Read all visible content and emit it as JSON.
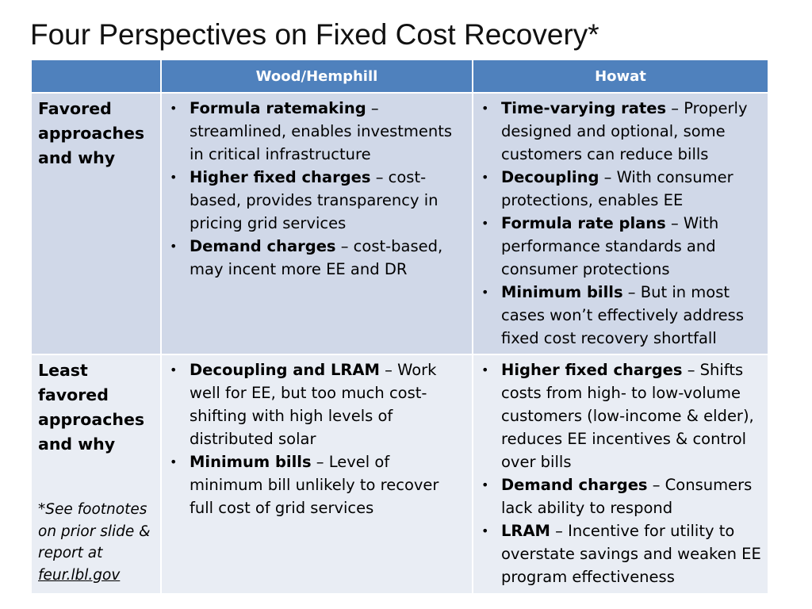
{
  "title": "Four Perspectives on Fixed Cost Recovery*",
  "table": {
    "headers": [
      "",
      "Wood/Hemphill",
      "Howat"
    ],
    "rows": [
      {
        "label": "Favored approaches and why",
        "col1": [
          {
            "term": "Formula ratemaking",
            "desc": " – streamlined, enables investments in critical infrastructure"
          },
          {
            "term": "Higher fixed charges",
            "desc": " – cost-based, provides transparency in pricing grid services"
          },
          {
            "term": "Demand charges",
            "desc": " – cost-based, may incent more EE and DR"
          }
        ],
        "col2": [
          {
            "term": "Time-varying rates",
            "desc": " – Properly designed and optional, some customers can reduce bills"
          },
          {
            "term": "Decoupling",
            "desc": " – With consumer protections, enables EE"
          },
          {
            "term": "Formula rate plans",
            "desc": " – With performance standards and consumer protections"
          },
          {
            "term": "Minimum bills",
            "desc": " – But in most cases won’t effectively address fixed cost recovery shortfall"
          }
        ]
      },
      {
        "label": "Least favored approaches and why",
        "footnote_text": "*See footnotes on prior slide & report at",
        "footnote_link": "feur.lbl.gov",
        "col1": [
          {
            "term": "Decoupling and LRAM",
            "desc": " – Work well for EE, but too much cost-shifting with high levels of distributed solar"
          },
          {
            "term": "Minimum bills",
            "desc": " – Level of minimum bill unlikely to recover full cost of grid services"
          }
        ],
        "col2": [
          {
            "term": "Higher fixed charges",
            "desc": " – Shifts costs from high- to low-volume customers (low-income & elder), reduces EE incentives & control over bills"
          },
          {
            "term": "Demand charges",
            "desc": " – Consumers lack ability to respond"
          },
          {
            "term": "LRAM",
            "desc": " – Incentive for utility to overstate savings and weaken EE program effectiveness"
          }
        ]
      }
    ]
  },
  "colors": {
    "header_bg": "#4f81bd",
    "row_odd_bg": "#d0d8e8",
    "row_even_bg": "#e9edf4"
  }
}
